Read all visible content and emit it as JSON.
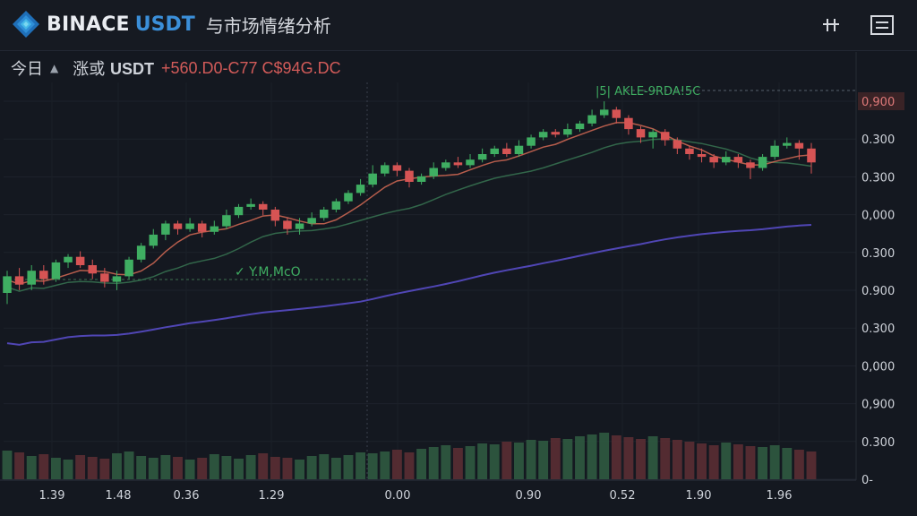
{
  "header": {
    "brand": "BINACE",
    "pair": "USDT",
    "subtitle": "与市场情绪分析",
    "grid_icon": "grid-icon",
    "menu_icon": "menu-icon"
  },
  "summary": {
    "timeframe": "今日",
    "pair_prefix": "涨或",
    "pair": "USDT",
    "values": "+560.D0-C77 C$94G.DC"
  },
  "annotations": {
    "top": "|5| AKLE-9RDA!5C",
    "mid": "✓ Y.M,McO"
  },
  "colors": {
    "background": "#141820",
    "up": "#3fae62",
    "down": "#d65454",
    "ma_fast": "#d46a55",
    "ma_mid": "#3a7a55",
    "ma_slow": "#5a4fd0"
  },
  "chart_data": {
    "type": "candlestick",
    "y_axis_labels": [
      "0,900",
      "0.300",
      "0.300",
      "0,000",
      "0.300",
      "0.900",
      "0.300",
      "0,000",
      "0,900",
      "0.300",
      "0-"
    ],
    "x_axis_labels": [
      "1.39",
      "1.48",
      "0.36",
      "1.29",
      "0.00",
      "0.90",
      "0.52",
      "1.90",
      "1.96"
    ],
    "highlighted_price": "0,900",
    "price_range": [
      0,
      100
    ],
    "candles": [
      {
        "o": 30,
        "c": 36,
        "h": 38,
        "l": 26
      },
      {
        "o": 36,
        "c": 33,
        "h": 39,
        "l": 31
      },
      {
        "o": 33,
        "c": 38,
        "h": 40,
        "l": 31
      },
      {
        "o": 38,
        "c": 35,
        "h": 40,
        "l": 33
      },
      {
        "o": 35,
        "c": 41,
        "h": 42,
        "l": 34
      },
      {
        "o": 41,
        "c": 43,
        "h": 44,
        "l": 39
      },
      {
        "o": 43,
        "c": 40,
        "h": 45,
        "l": 39
      },
      {
        "o": 40,
        "c": 37,
        "h": 42,
        "l": 35
      },
      {
        "o": 37,
        "c": 34,
        "h": 39,
        "l": 32
      },
      {
        "o": 34,
        "c": 36,
        "h": 38,
        "l": 31
      },
      {
        "o": 36,
        "c": 42,
        "h": 43,
        "l": 35
      },
      {
        "o": 42,
        "c": 47,
        "h": 48,
        "l": 41
      },
      {
        "o": 47,
        "c": 51,
        "h": 53,
        "l": 46
      },
      {
        "o": 51,
        "c": 55,
        "h": 56,
        "l": 49
      },
      {
        "o": 55,
        "c": 53,
        "h": 56,
        "l": 51
      },
      {
        "o": 53,
        "c": 55,
        "h": 57,
        "l": 52
      },
      {
        "o": 55,
        "c": 52,
        "h": 56,
        "l": 50
      },
      {
        "o": 52,
        "c": 54,
        "h": 56,
        "l": 51
      },
      {
        "o": 54,
        "c": 58,
        "h": 60,
        "l": 53
      },
      {
        "o": 58,
        "c": 61,
        "h": 62,
        "l": 57
      },
      {
        "o": 61,
        "c": 62,
        "h": 64,
        "l": 60
      },
      {
        "o": 62,
        "c": 60,
        "h": 63,
        "l": 58
      },
      {
        "o": 60,
        "c": 56,
        "h": 61,
        "l": 54
      },
      {
        "o": 56,
        "c": 53,
        "h": 57,
        "l": 51
      },
      {
        "o": 53,
        "c": 55,
        "h": 57,
        "l": 51
      },
      {
        "o": 55,
        "c": 57,
        "h": 59,
        "l": 54
      },
      {
        "o": 57,
        "c": 60,
        "h": 61,
        "l": 56
      },
      {
        "o": 60,
        "c": 63,
        "h": 64,
        "l": 59
      },
      {
        "o": 63,
        "c": 66,
        "h": 67,
        "l": 62
      },
      {
        "o": 66,
        "c": 69,
        "h": 71,
        "l": 65
      },
      {
        "o": 69,
        "c": 73,
        "h": 76,
        "l": 68
      },
      {
        "o": 73,
        "c": 76,
        "h": 77,
        "l": 72
      },
      {
        "o": 76,
        "c": 74,
        "h": 77,
        "l": 72
      },
      {
        "o": 74,
        "c": 70,
        "h": 75,
        "l": 68
      },
      {
        "o": 70,
        "c": 72,
        "h": 73,
        "l": 69
      },
      {
        "o": 72,
        "c": 75,
        "h": 77,
        "l": 71
      },
      {
        "o": 75,
        "c": 77,
        "h": 78,
        "l": 74
      },
      {
        "o": 77,
        "c": 76,
        "h": 79,
        "l": 75
      },
      {
        "o": 76,
        "c": 78,
        "h": 80,
        "l": 75
      },
      {
        "o": 78,
        "c": 80,
        "h": 82,
        "l": 77
      },
      {
        "o": 80,
        "c": 82,
        "h": 83,
        "l": 79
      },
      {
        "o": 82,
        "c": 80,
        "h": 84,
        "l": 79
      },
      {
        "o": 80,
        "c": 83,
        "h": 85,
        "l": 79
      },
      {
        "o": 83,
        "c": 86,
        "h": 87,
        "l": 82
      },
      {
        "o": 86,
        "c": 88,
        "h": 89,
        "l": 85
      },
      {
        "o": 88,
        "c": 87,
        "h": 89,
        "l": 86
      },
      {
        "o": 87,
        "c": 89,
        "h": 91,
        "l": 86
      },
      {
        "o": 89,
        "c": 91,
        "h": 92,
        "l": 88
      },
      {
        "o": 91,
        "c": 94,
        "h": 96,
        "l": 90
      },
      {
        "o": 94,
        "c": 96,
        "h": 99,
        "l": 93
      },
      {
        "o": 96,
        "c": 93,
        "h": 97,
        "l": 91
      },
      {
        "o": 93,
        "c": 89,
        "h": 94,
        "l": 87
      },
      {
        "o": 89,
        "c": 86,
        "h": 90,
        "l": 84
      },
      {
        "o": 86,
        "c": 88,
        "h": 89,
        "l": 82
      },
      {
        "o": 88,
        "c": 85,
        "h": 89,
        "l": 83
      },
      {
        "o": 85,
        "c": 82,
        "h": 86,
        "l": 80
      },
      {
        "o": 82,
        "c": 80,
        "h": 83,
        "l": 78
      },
      {
        "o": 80,
        "c": 79,
        "h": 82,
        "l": 77
      },
      {
        "o": 79,
        "c": 77,
        "h": 80,
        "l": 75
      },
      {
        "o": 77,
        "c": 79,
        "h": 81,
        "l": 76
      },
      {
        "o": 79,
        "c": 77,
        "h": 80,
        "l": 75
      },
      {
        "o": 77,
        "c": 75,
        "h": 78,
        "l": 71
      },
      {
        "o": 75,
        "c": 79,
        "h": 80,
        "l": 74
      },
      {
        "o": 79,
        "c": 83,
        "h": 85,
        "l": 78
      },
      {
        "o": 83,
        "c": 84,
        "h": 86,
        "l": 82
      },
      {
        "o": 84,
        "c": 82,
        "h": 85,
        "l": 78
      },
      {
        "o": 82,
        "c": 77,
        "h": 84,
        "l": 73
      }
    ],
    "volume": [
      32,
      30,
      26,
      28,
      24,
      22,
      27,
      25,
      23,
      29,
      31,
      26,
      24,
      27,
      25,
      22,
      24,
      28,
      26,
      23,
      27,
      29,
      25,
      24,
      22,
      26,
      28,
      24,
      27,
      30,
      29,
      31,
      33,
      30,
      34,
      36,
      38,
      35,
      37,
      40,
      39,
      42,
      41,
      44,
      43,
      46,
      45,
      48,
      50,
      52,
      49,
      47,
      45,
      48,
      46,
      44,
      42,
      40,
      38,
      41,
      39,
      37,
      36,
      38,
      35,
      33,
      31
    ]
  }
}
